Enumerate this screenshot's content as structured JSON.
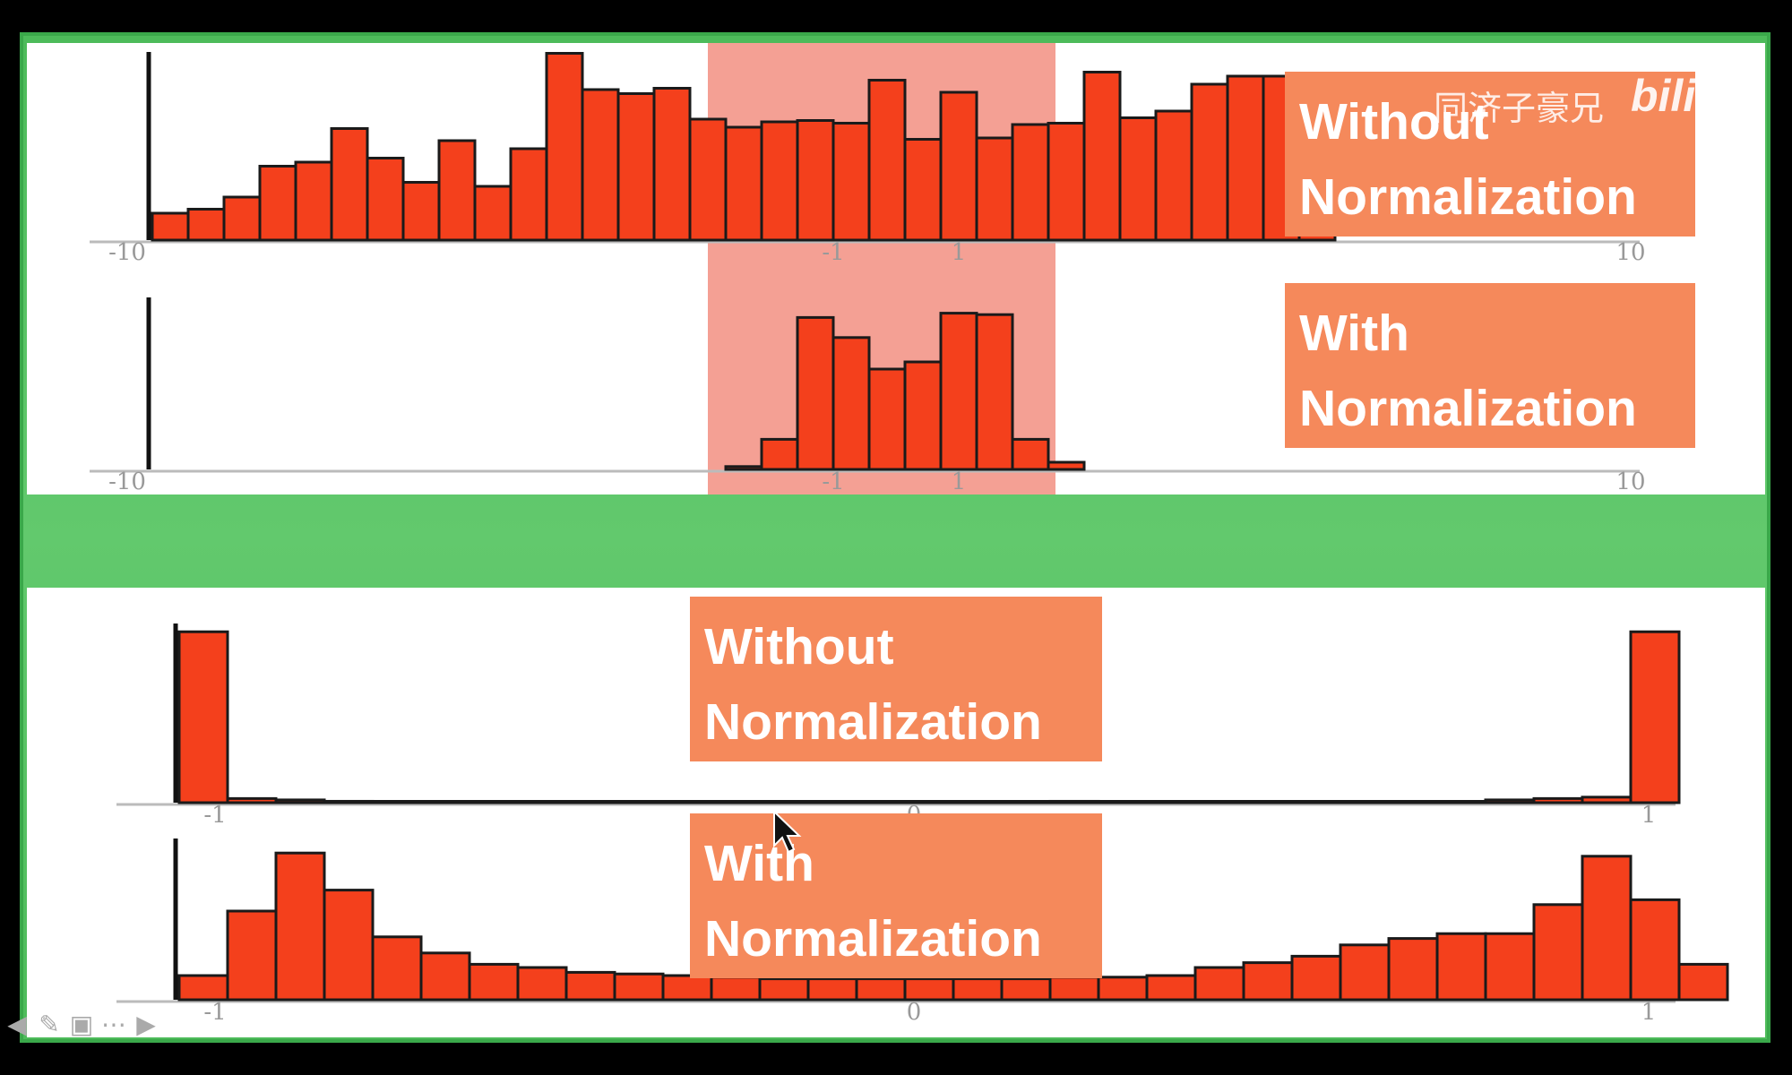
{
  "chart_data": [
    {
      "type": "bar",
      "title": "",
      "x_tick_labels": [
        "-10",
        "-1",
        "1",
        "10"
      ],
      "values": [
        2,
        2.3,
        3.2,
        5.5,
        5.8,
        8.3,
        6.1,
        4.3,
        7.4,
        4.0,
        6.8,
        13.9,
        11.2,
        10.9,
        11.3,
        9.0,
        8.4,
        8.8,
        8.9,
        8.7,
        11.9,
        7.5,
        11.0,
        7.6,
        8.6,
        8.7,
        12.5,
        9.1,
        9.6,
        11.6,
        12.2,
        12.2,
        11.0
      ],
      "ylim": [
        0,
        14
      ],
      "highlight_range": "-1 to 1",
      "legend_box": [
        "Without",
        "Normalization"
      ]
    },
    {
      "type": "bar",
      "title": "",
      "x_tick_labels": [
        "-10",
        "-1",
        "1",
        "10"
      ],
      "values": [
        0.2,
        2.1,
        10.6,
        9.2,
        7.0,
        7.5,
        10.9,
        10.8,
        2.1,
        0.5
      ],
      "ylim": [
        0,
        12
      ],
      "legend_box": [
        "With",
        "Normalization"
      ]
    },
    {
      "type": "bar",
      "title": "",
      "x_tick_labels": [
        "-1",
        "0",
        "1"
      ],
      "values": [
        12.4,
        0.3,
        0.2,
        0.1,
        0.05,
        0.05,
        0.05,
        0.05,
        0.05,
        0.05,
        0.05,
        0.05,
        0.05,
        0.05,
        0.05,
        0.05,
        0.05,
        0.05,
        0.1,
        0.05,
        0.05,
        0.05,
        0.05,
        0.05,
        0.05,
        0.05,
        0.05,
        0.2,
        0.3,
        0.4,
        12.4
      ],
      "ylim": [
        0,
        13
      ],
      "legend_box": [
        "Without",
        "Normalization"
      ]
    },
    {
      "type": "bar",
      "title": "",
      "x_tick_labels": [
        "-1",
        "0",
        "1"
      ],
      "values": [
        1.5,
        5.5,
        9.1,
        6.8,
        3.9,
        2.9,
        2.2,
        2.0,
        1.7,
        1.6,
        1.5,
        1.4,
        1.3,
        1.3,
        1.3,
        1.3,
        1.3,
        1.3,
        1.4,
        1.4,
        1.5,
        2.0,
        2.3,
        2.7,
        3.4,
        3.8,
        4.1,
        4.1,
        5.9,
        8.9,
        6.2,
        2.2
      ],
      "ylim": [
        0,
        10
      ],
      "legend_box": [
        "With",
        "Normalization"
      ]
    }
  ],
  "watermark": {
    "text": "同济子豪兄",
    "logo": "bilibili"
  },
  "toolbar": [
    "arrow-left-icon",
    "pen-icon",
    "slide-grid-icon",
    "more-icon",
    "arrow-right-icon"
  ],
  "colors": {
    "bar": "#f4401c",
    "bar_edge": "#1a1a1a",
    "label_box": "#f5895b",
    "highlight": "#f08070",
    "frame": "#4dbb5a"
  }
}
